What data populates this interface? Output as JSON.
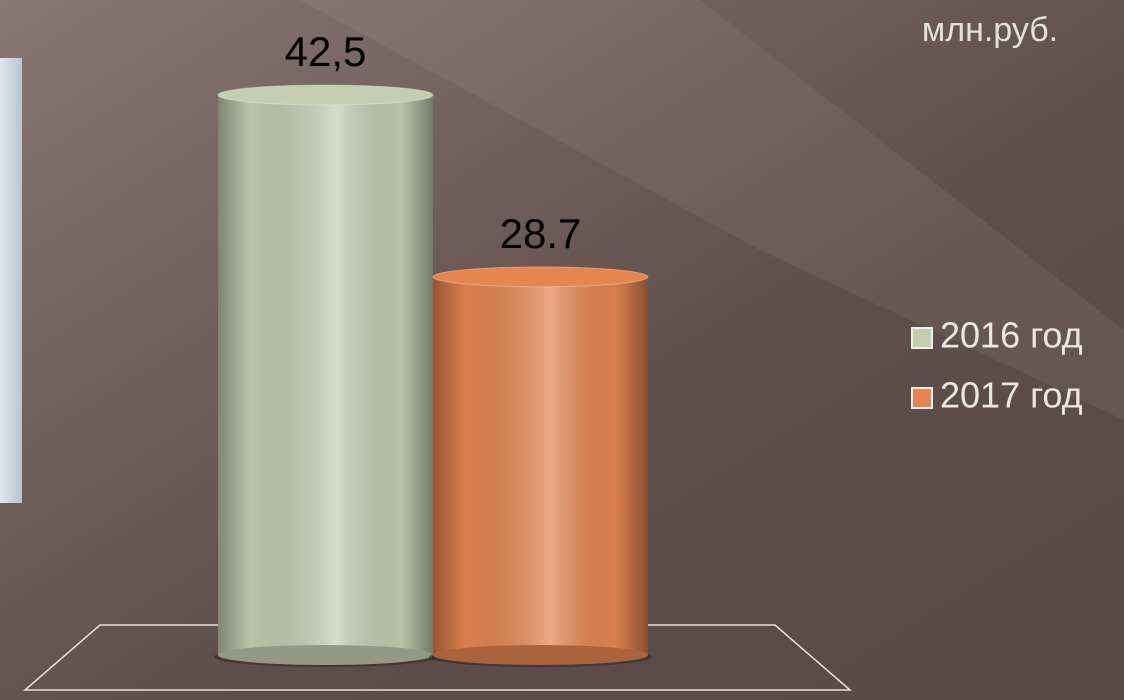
{
  "chart_data": {
    "type": "cylinder_bar",
    "unit": "млн.руб.",
    "series": [
      {
        "name": "2016 год",
        "color": "#c3cdb0",
        "values": [
          42.5
        ],
        "value_labels": [
          "42,5"
        ]
      },
      {
        "name": "2017 год",
        "color": "#e58550",
        "values": [
          28.7
        ]
      }
    ]
  }
}
